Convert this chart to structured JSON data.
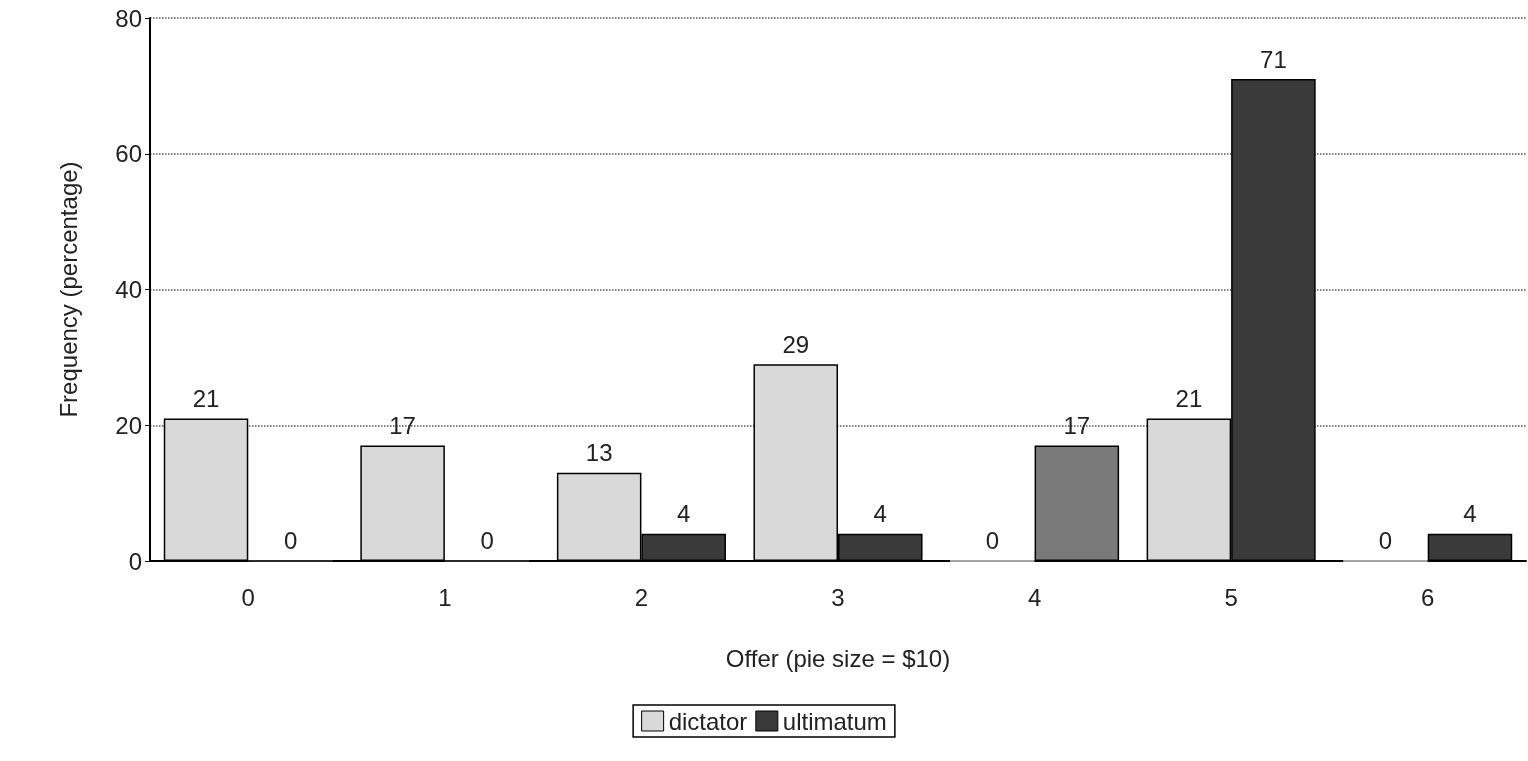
{
  "chart_data": {
    "type": "bar",
    "xlabel": "Offer (pie size = $10)",
    "ylabel": "Frequency (percentage)",
    "categories": [
      "0",
      "1",
      "2",
      "3",
      "4",
      "5",
      "6"
    ],
    "series": [
      {
        "name": "dictator",
        "color": "#d9d9d9",
        "values": [
          21,
          17,
          13,
          29,
          0,
          21,
          0
        ]
      },
      {
        "name": "ultimatum",
        "color": "#3a3a3a",
        "colors": [
          "#3a3a3a",
          "#3a3a3a",
          "#3a3a3a",
          "#3a3a3a",
          "#7a7a7a",
          "#3a3a3a",
          "#3a3a3a"
        ],
        "values": [
          0,
          0,
          4,
          4,
          17,
          71,
          4
        ]
      }
    ],
    "ylim": [
      0,
      80
    ],
    "yticks": [
      0,
      20,
      40,
      60,
      80
    ],
    "grid": "y",
    "legend": "bottom",
    "data_labels": true
  }
}
